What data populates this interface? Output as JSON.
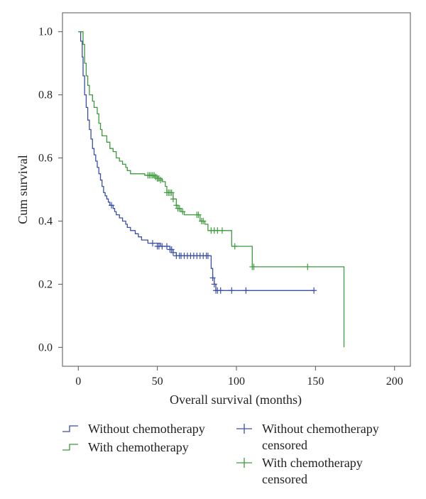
{
  "chart_data": {
    "type": "line",
    "title": "",
    "xlabel": "Overall survival (months)",
    "ylabel": "Cum survival",
    "xlim": [
      -10,
      210
    ],
    "ylim": [
      -0.06,
      1.06
    ],
    "xticks": [
      0,
      50,
      100,
      150,
      200
    ],
    "yticks": [
      0.0,
      0.2,
      0.4,
      0.6,
      0.8,
      1.0
    ],
    "ytick_labels": [
      "0.0",
      "0.2",
      "0.4",
      "0.6",
      "0.8",
      "1.0"
    ],
    "grid": false,
    "legend_position": "bottom",
    "series": [
      {
        "name": "Without chemotherapy",
        "color": "#3a4fa8",
        "steps": [
          [
            0,
            1.0
          ],
          [
            1.5,
            0.97
          ],
          [
            2.5,
            0.92
          ],
          [
            3,
            0.86
          ],
          [
            4,
            0.8
          ],
          [
            5,
            0.76
          ],
          [
            6,
            0.72
          ],
          [
            7,
            0.69
          ],
          [
            8,
            0.66
          ],
          [
            9,
            0.63
          ],
          [
            10,
            0.61
          ],
          [
            11,
            0.59
          ],
          [
            12,
            0.57
          ],
          [
            13,
            0.55
          ],
          [
            14,
            0.53
          ],
          [
            15,
            0.51
          ],
          [
            16,
            0.49
          ],
          [
            17,
            0.48
          ],
          [
            18,
            0.47
          ],
          [
            19,
            0.46
          ],
          [
            20,
            0.45
          ],
          [
            22,
            0.44
          ],
          [
            23,
            0.43
          ],
          [
            24,
            0.42
          ],
          [
            26,
            0.41
          ],
          [
            28,
            0.4
          ],
          [
            30,
            0.39
          ],
          [
            31,
            0.38
          ],
          [
            33,
            0.37
          ],
          [
            36,
            0.36
          ],
          [
            38,
            0.35
          ],
          [
            40,
            0.34
          ],
          [
            44,
            0.33
          ],
          [
            52,
            0.32
          ],
          [
            58,
            0.31
          ],
          [
            60,
            0.3
          ],
          [
            62,
            0.29
          ],
          [
            84,
            0.25
          ],
          [
            85,
            0.22
          ],
          [
            86,
            0.2
          ],
          [
            87,
            0.18
          ],
          [
            149,
            0.18
          ]
        ],
        "censored": [
          [
            21,
            0.45
          ],
          [
            47,
            0.33
          ],
          [
            50,
            0.32
          ],
          [
            51,
            0.32
          ],
          [
            53,
            0.32
          ],
          [
            56,
            0.32
          ],
          [
            58,
            0.31
          ],
          [
            59,
            0.31
          ],
          [
            60,
            0.3
          ],
          [
            62,
            0.29
          ],
          [
            64,
            0.29
          ],
          [
            65,
            0.29
          ],
          [
            67,
            0.29
          ],
          [
            69,
            0.29
          ],
          [
            71,
            0.29
          ],
          [
            73,
            0.29
          ],
          [
            75,
            0.29
          ],
          [
            77,
            0.29
          ],
          [
            79,
            0.29
          ],
          [
            81,
            0.29
          ],
          [
            82,
            0.29
          ],
          [
            85,
            0.22
          ],
          [
            86,
            0.2
          ],
          [
            87,
            0.18
          ],
          [
            88,
            0.18
          ],
          [
            90,
            0.18
          ],
          [
            97,
            0.18
          ],
          [
            106,
            0.18
          ],
          [
            149,
            0.18
          ]
        ]
      },
      {
        "name": "With chemotherapy",
        "color": "#3d9a3d",
        "steps": [
          [
            0,
            1.0
          ],
          [
            3,
            0.96
          ],
          [
            4,
            0.9
          ],
          [
            5,
            0.86
          ],
          [
            6,
            0.83
          ],
          [
            7,
            0.8
          ],
          [
            9,
            0.78
          ],
          [
            10,
            0.76
          ],
          [
            12,
            0.74
          ],
          [
            13,
            0.71
          ],
          [
            14,
            0.69
          ],
          [
            15,
            0.67
          ],
          [
            18,
            0.65
          ],
          [
            20,
            0.63
          ],
          [
            22,
            0.62
          ],
          [
            24,
            0.6
          ],
          [
            26,
            0.59
          ],
          [
            28,
            0.58
          ],
          [
            30,
            0.57
          ],
          [
            31,
            0.56
          ],
          [
            33,
            0.55
          ],
          [
            42,
            0.545
          ],
          [
            50,
            0.535
          ],
          [
            53,
            0.525
          ],
          [
            55,
            0.51
          ],
          [
            56,
            0.49
          ],
          [
            60,
            0.47
          ],
          [
            62,
            0.45
          ],
          [
            63,
            0.44
          ],
          [
            65,
            0.43
          ],
          [
            67,
            0.42
          ],
          [
            77,
            0.4
          ],
          [
            80,
            0.39
          ],
          [
            82,
            0.37
          ],
          [
            97,
            0.32
          ],
          [
            110,
            0.255
          ],
          [
            168,
            0.255
          ],
          [
            168,
            0.0
          ]
        ],
        "censored": [
          [
            44,
            0.545
          ],
          [
            45,
            0.545
          ],
          [
            46,
            0.545
          ],
          [
            47,
            0.545
          ],
          [
            48,
            0.545
          ],
          [
            49,
            0.54
          ],
          [
            50,
            0.535
          ],
          [
            51,
            0.535
          ],
          [
            52,
            0.53
          ],
          [
            56,
            0.49
          ],
          [
            57,
            0.49
          ],
          [
            58,
            0.49
          ],
          [
            59,
            0.49
          ],
          [
            60,
            0.47
          ],
          [
            62,
            0.45
          ],
          [
            63,
            0.44
          ],
          [
            64,
            0.44
          ],
          [
            66,
            0.43
          ],
          [
            75,
            0.42
          ],
          [
            76,
            0.42
          ],
          [
            78,
            0.4
          ],
          [
            79,
            0.4
          ],
          [
            84,
            0.37
          ],
          [
            86,
            0.37
          ],
          [
            88,
            0.37
          ],
          [
            91,
            0.37
          ],
          [
            99,
            0.32
          ],
          [
            110,
            0.255
          ],
          [
            111,
            0.255
          ],
          [
            145,
            0.255
          ]
        ]
      }
    ],
    "legend": [
      {
        "label": "Without chemotherapy",
        "kind": "step",
        "series": 0
      },
      {
        "label": "With chemotherapy",
        "kind": "step",
        "series": 1
      },
      {
        "label_lines": [
          "Without chemotherapy",
          "censored"
        ],
        "kind": "censor",
        "series": 0
      },
      {
        "label_lines": [
          "With chemotherapy",
          "censored"
        ],
        "kind": "censor",
        "series": 1
      }
    ]
  }
}
